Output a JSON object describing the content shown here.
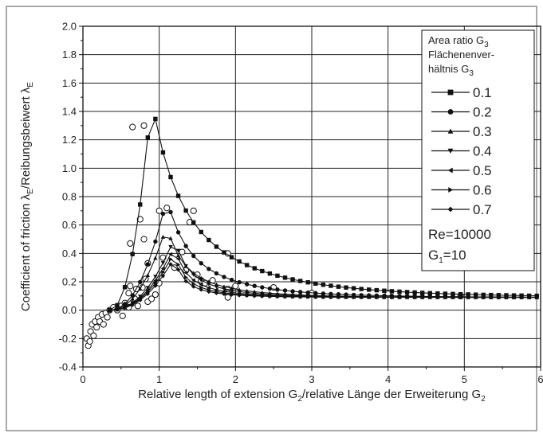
{
  "chart_data": {
    "type": "line",
    "xlabel": {
      "main": "Relative length of extension G",
      "sub1": "2",
      "mid": "/relative Länge der Erweiterung G",
      "sub2": "2"
    },
    "ylabel": {
      "main": "Coefficient of friction λ",
      "sub1": "E",
      "mid": "/Reibungsbeiwert λ",
      "sub2": "E"
    },
    "xlim": [
      0,
      6
    ],
    "ylim": [
      -0.4,
      2.0
    ],
    "xticks": [
      0,
      1,
      2,
      3,
      4,
      5,
      6
    ],
    "xtick_labels": [
      "0",
      "1",
      "2",
      "3",
      "4",
      "5",
      "6"
    ],
    "yticks": [
      -0.4,
      -0.2,
      0.0,
      0.2,
      0.4,
      0.6,
      0.8,
      1.0,
      1.2,
      1.4,
      1.6,
      1.8,
      2.0
    ],
    "ytick_labels": [
      "-0.4",
      "-0.2",
      "0.0",
      "0.2",
      "0.4",
      "0.6",
      "0.8",
      "1.0",
      "1.2",
      "1.4",
      "1.6",
      "1.8",
      "2.0"
    ],
    "grid": true,
    "legend": {
      "position": "top-right",
      "title_line1": "Area ratio G",
      "title_line1_sub": "3",
      "title_line2": "Flächenenver-",
      "title_line3": "hältnis G",
      "title_line3_sub": "3",
      "param1": "Re=10000",
      "param2_main": "G",
      "param2_sub": "1",
      "param2_rest": "=10"
    },
    "series": [
      {
        "name": "0.1",
        "marker": "square",
        "peak_x": 0.9,
        "peak_y": 1.5,
        "y0": 0.0,
        "tail_a": 0.09,
        "tail_b": 0.53,
        "tail_k": 1.4
      },
      {
        "name": "0.2",
        "marker": "circle",
        "peak_x": 1.1,
        "peak_y": 0.79,
        "y0": 0.0,
        "tail_a": 0.09,
        "tail_b": 0.4,
        "tail_k": 2.0
      },
      {
        "name": "0.3",
        "marker": "triangle-up",
        "peak_x": 1.1,
        "peak_y": 0.6,
        "y0": 0.0,
        "tail_a": 0.09,
        "tail_b": 0.28,
        "tail_k": 2.3
      },
      {
        "name": "0.4",
        "marker": "triangle-down",
        "peak_x": 1.2,
        "peak_y": 0.51,
        "y0": 0.0,
        "tail_a": 0.09,
        "tail_b": 0.23,
        "tail_k": 2.6
      },
      {
        "name": "0.5",
        "marker": "triangle-left",
        "peak_x": 1.2,
        "peak_y": 0.45,
        "y0": 0.0,
        "tail_a": 0.09,
        "tail_b": 0.19,
        "tail_k": 2.8
      },
      {
        "name": "0.6",
        "marker": "triangle-right",
        "peak_x": 1.2,
        "peak_y": 0.41,
        "y0": 0.0,
        "tail_a": 0.09,
        "tail_b": 0.16,
        "tail_k": 3.0
      },
      {
        "name": "0.7",
        "marker": "diamond",
        "peak_x": 1.2,
        "peak_y": 0.37,
        "y0": 0.0,
        "tail_a": 0.09,
        "tail_b": 0.14,
        "tail_k": 3.2
      }
    ],
    "measured_points": {
      "marker": "open-circle",
      "points": [
        [
          0.05,
          -0.2
        ],
        [
          0.07,
          -0.25
        ],
        [
          0.09,
          -0.22
        ],
        [
          0.1,
          -0.15
        ],
        [
          0.12,
          -0.1
        ],
        [
          0.14,
          -0.18
        ],
        [
          0.16,
          -0.08
        ],
        [
          0.18,
          -0.12
        ],
        [
          0.2,
          -0.05
        ],
        [
          0.22,
          -0.08
        ],
        [
          0.25,
          -0.03
        ],
        [
          0.27,
          -0.1
        ],
        [
          0.3,
          -0.02
        ],
        [
          0.32,
          -0.05
        ],
        [
          0.35,
          0.0
        ],
        [
          0.4,
          0.02
        ],
        [
          0.45,
          0.0
        ],
        [
          0.5,
          0.03
        ],
        [
          0.52,
          -0.04
        ],
        [
          0.55,
          0.05
        ],
        [
          0.6,
          0.12
        ],
        [
          0.6,
          0.02
        ],
        [
          0.62,
          0.47
        ],
        [
          0.62,
          0.17
        ],
        [
          0.65,
          1.29
        ],
        [
          0.68,
          0.08
        ],
        [
          0.7,
          0.15
        ],
        [
          0.72,
          0.03
        ],
        [
          0.75,
          0.64
        ],
        [
          0.78,
          0.16
        ],
        [
          0.8,
          0.5
        ],
        [
          0.8,
          1.3
        ],
        [
          0.82,
          0.22
        ],
        [
          0.85,
          0.06
        ],
        [
          0.85,
          0.33
        ],
        [
          0.9,
          0.08
        ],
        [
          0.95,
          0.11
        ],
        [
          1.0,
          0.19
        ],
        [
          1.0,
          0.7
        ],
        [
          1.05,
          0.37
        ],
        [
          1.1,
          0.72
        ],
        [
          1.2,
          0.3
        ],
        [
          1.3,
          0.41
        ],
        [
          1.35,
          0.28
        ],
        [
          1.4,
          0.62
        ],
        [
          1.45,
          0.7
        ],
        [
          1.5,
          0.25
        ],
        [
          1.55,
          0.21
        ],
        [
          1.6,
          0.19
        ],
        [
          1.7,
          0.21
        ],
        [
          1.9,
          0.4
        ],
        [
          1.9,
          0.15
        ],
        [
          1.9,
          0.12
        ],
        [
          1.9,
          0.09
        ],
        [
          2.0,
          0.17
        ],
        [
          2.5,
          0.16
        ],
        [
          3.0,
          0.12
        ],
        [
          4.0,
          0.12
        ],
        [
          4.95,
          0.1
        ]
      ]
    }
  }
}
